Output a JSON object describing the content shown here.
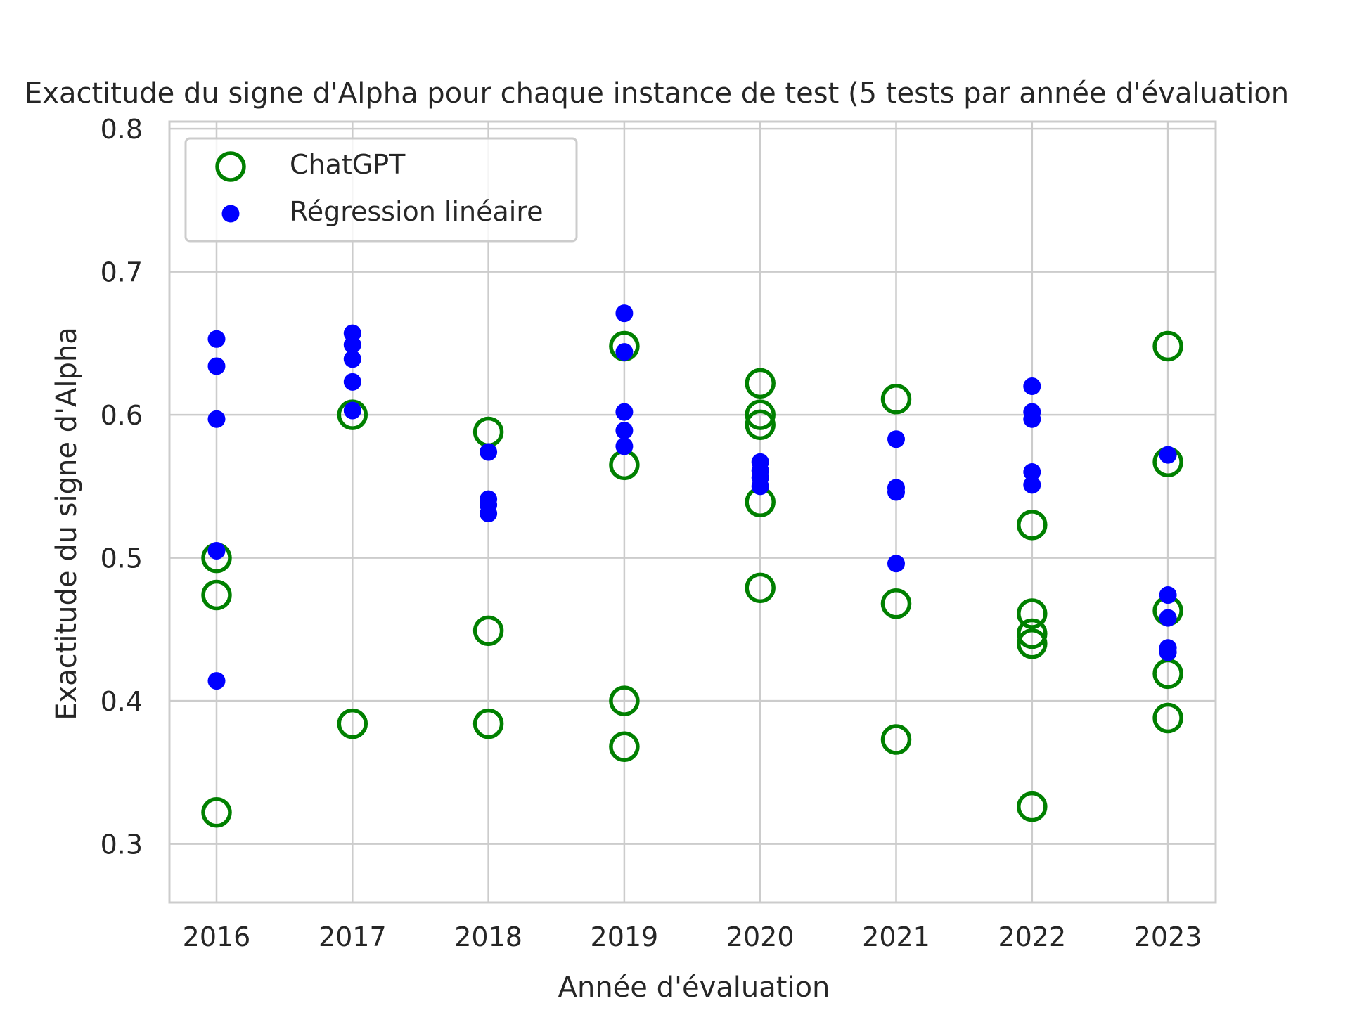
{
  "chart_data": {
    "type": "scatter",
    "title": "Exactitude du signe d'Alpha pour chaque instance de test (5 tests par année d'évaluation",
    "xlabel": "Année d'évaluation",
    "ylabel": "Exactitude du signe d'Alpha",
    "categories": [
      "2016",
      "2017",
      "2018",
      "2019",
      "2020",
      "2021",
      "2022",
      "2023"
    ],
    "ylim": [
      0.259,
      0.805
    ],
    "yticks": [
      0.3,
      0.4,
      0.5,
      0.6,
      0.7,
      0.8
    ],
    "ytick_labels": [
      "0.3",
      "0.4",
      "0.5",
      "0.6",
      "0.7",
      "0.8"
    ],
    "grid": true,
    "legend_position": "top-left",
    "series": [
      {
        "name": "ChatGPT",
        "marker": "open-circle",
        "color": "#008000",
        "points": [
          {
            "x": "2016",
            "y": 0.5
          },
          {
            "x": "2016",
            "y": 0.474
          },
          {
            "x": "2016",
            "y": 0.322
          },
          {
            "x": "2017",
            "y": 0.6
          },
          {
            "x": "2017",
            "y": 0.384
          },
          {
            "x": "2018",
            "y": 0.588
          },
          {
            "x": "2018",
            "y": 0.449
          },
          {
            "x": "2018",
            "y": 0.384
          },
          {
            "x": "2019",
            "y": 0.648
          },
          {
            "x": "2019",
            "y": 0.565
          },
          {
            "x": "2019",
            "y": 0.4
          },
          {
            "x": "2019",
            "y": 0.368
          },
          {
            "x": "2020",
            "y": 0.622
          },
          {
            "x": "2020",
            "y": 0.6
          },
          {
            "x": "2020",
            "y": 0.593
          },
          {
            "x": "2020",
            "y": 0.539
          },
          {
            "x": "2020",
            "y": 0.479
          },
          {
            "x": "2021",
            "y": 0.611
          },
          {
            "x": "2021",
            "y": 0.468
          },
          {
            "x": "2021",
            "y": 0.373
          },
          {
            "x": "2022",
            "y": 0.523
          },
          {
            "x": "2022",
            "y": 0.461
          },
          {
            "x": "2022",
            "y": 0.447
          },
          {
            "x": "2022",
            "y": 0.44
          },
          {
            "x": "2022",
            "y": 0.326
          },
          {
            "x": "2023",
            "y": 0.648
          },
          {
            "x": "2023",
            "y": 0.567
          },
          {
            "x": "2023",
            "y": 0.463
          },
          {
            "x": "2023",
            "y": 0.419
          },
          {
            "x": "2023",
            "y": 0.388
          }
        ]
      },
      {
        "name": "Régression linéaire",
        "marker": "filled-circle",
        "color": "#0000ff",
        "points": [
          {
            "x": "2016",
            "y": 0.653
          },
          {
            "x": "2016",
            "y": 0.634
          },
          {
            "x": "2016",
            "y": 0.597
          },
          {
            "x": "2016",
            "y": 0.505
          },
          {
            "x": "2016",
            "y": 0.414
          },
          {
            "x": "2017",
            "y": 0.657
          },
          {
            "x": "2017",
            "y": 0.649
          },
          {
            "x": "2017",
            "y": 0.639
          },
          {
            "x": "2017",
            "y": 0.623
          },
          {
            "x": "2017",
            "y": 0.603
          },
          {
            "x": "2018",
            "y": 0.574
          },
          {
            "x": "2018",
            "y": 0.541
          },
          {
            "x": "2018",
            "y": 0.537
          },
          {
            "x": "2018",
            "y": 0.531
          },
          {
            "x": "2019",
            "y": 0.671
          },
          {
            "x": "2019",
            "y": 0.644
          },
          {
            "x": "2019",
            "y": 0.602
          },
          {
            "x": "2019",
            "y": 0.589
          },
          {
            "x": "2019",
            "y": 0.578
          },
          {
            "x": "2020",
            "y": 0.567
          },
          {
            "x": "2020",
            "y": 0.561
          },
          {
            "x": "2020",
            "y": 0.556
          },
          {
            "x": "2020",
            "y": 0.55
          },
          {
            "x": "2021",
            "y": 0.583
          },
          {
            "x": "2021",
            "y": 0.549
          },
          {
            "x": "2021",
            "y": 0.546
          },
          {
            "x": "2021",
            "y": 0.496
          },
          {
            "x": "2022",
            "y": 0.62
          },
          {
            "x": "2022",
            "y": 0.602
          },
          {
            "x": "2022",
            "y": 0.597
          },
          {
            "x": "2022",
            "y": 0.56
          },
          {
            "x": "2022",
            "y": 0.551
          },
          {
            "x": "2023",
            "y": 0.572
          },
          {
            "x": "2023",
            "y": 0.474
          },
          {
            "x": "2023",
            "y": 0.458
          },
          {
            "x": "2023",
            "y": 0.437
          },
          {
            "x": "2023",
            "y": 0.434
          }
        ]
      }
    ]
  }
}
